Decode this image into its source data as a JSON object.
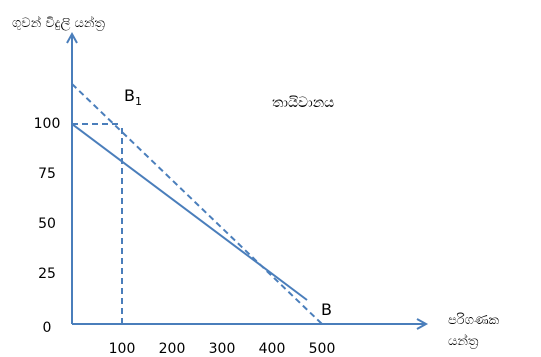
{
  "chart_data": {
    "type": "line",
    "title": "",
    "ylabel": "ගුවන් විදුලි යන්ත්‍ර",
    "xlabel_line1": "පරිගණක",
    "xlabel_line2": "යන්ත්‍ර",
    "y_ticks": [
      "0",
      "25",
      "50",
      "75",
      "100"
    ],
    "x_ticks": [
      "100",
      "200",
      "300",
      "400",
      "500"
    ],
    "xlim": [
      0,
      560
    ],
    "ylim": [
      0,
      150
    ],
    "series": [
      {
        "style": "solid",
        "x": [
          0,
          470
        ],
        "y": [
          100,
          12
        ]
      },
      {
        "style": "dashed",
        "x": [
          0,
          500
        ],
        "y": [
          120,
          0
        ]
      }
    ],
    "guides": [
      {
        "style": "dashed",
        "from": [
          100,
          0
        ],
        "to": [
          100,
          100
        ]
      },
      {
        "style": "dashed",
        "from": [
          0,
          100
        ],
        "to": [
          100,
          100
        ]
      }
    ],
    "point_labels": [
      {
        "id": "B1",
        "base": "B",
        "sub": "1"
      },
      {
        "id": "B",
        "base": "B",
        "sub": ""
      }
    ],
    "annotations": [
      {
        "text": "තායිවානය"
      }
    ],
    "grid": false,
    "legend": "none",
    "color": "#4a7ebb"
  }
}
